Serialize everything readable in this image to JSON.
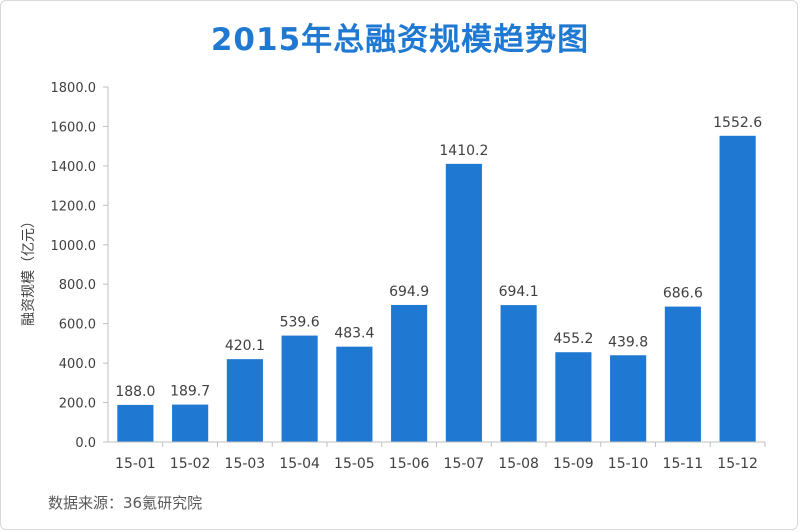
{
  "chart_data": {
    "type": "bar",
    "title": "2015年总融资规模趋势图",
    "ylabel": "融资规模（亿元）",
    "xlabel": "",
    "ylim": [
      0,
      1800
    ],
    "ytick_step": 200,
    "ytick_labels": [
      "0.0",
      "200.0",
      "400.0",
      "600.0",
      "800.0",
      "1000.0",
      "1200.0",
      "1400.0",
      "1600.0",
      "1800.0"
    ],
    "categories": [
      "15-01",
      "15-02",
      "15-03",
      "15-04",
      "15-05",
      "15-06",
      "15-07",
      "15-08",
      "15-09",
      "15-10",
      "15-11",
      "15-12"
    ],
    "values": [
      188.0,
      189.7,
      420.1,
      539.6,
      483.4,
      694.9,
      1410.2,
      694.1,
      455.2,
      439.8,
      686.6,
      1552.6
    ],
    "value_labels": [
      "188.0",
      "189.7",
      "420.1",
      "539.6",
      "483.4",
      "694.9",
      "1410.2",
      "694.1",
      "455.2",
      "439.8",
      "686.6",
      "1552.6"
    ],
    "bar_color": "#1f78d1",
    "grid": false,
    "legend": "none"
  },
  "source": "数据来源：36氪研究院"
}
